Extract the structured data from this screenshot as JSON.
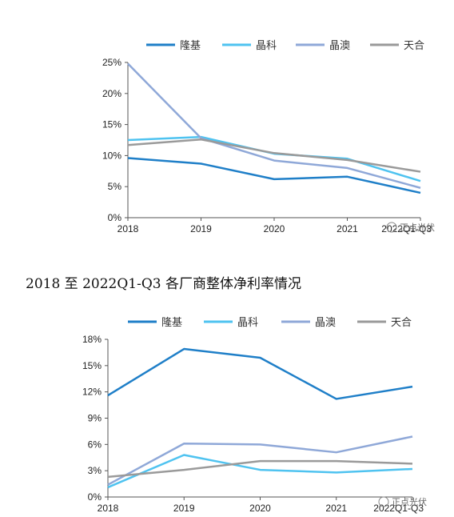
{
  "caption": "2018 至 2022Q1-Q3 各厂商整体净利率情况",
  "watermark": "正点光伏",
  "chart_data": [
    {
      "type": "line",
      "x": [
        "2018",
        "2019",
        "2020",
        "2021",
        "2022Q1-Q3"
      ],
      "ylim": [
        0,
        25
      ],
      "yticks": [
        "0%",
        "5%",
        "10%",
        "15%",
        "20%",
        "25%"
      ],
      "legend_position": "top",
      "series": [
        {
          "name": "隆基",
          "color": "#1f7fc8",
          "values": [
            9.6,
            8.7,
            6.2,
            6.6,
            4.0
          ]
        },
        {
          "name": "晶科",
          "color": "#4fc3f0",
          "values": [
            12.5,
            13.0,
            10.3,
            9.5,
            5.9
          ]
        },
        {
          "name": "晶澳",
          "color": "#8fa8d8",
          "values": [
            24.8,
            12.8,
            9.2,
            8.0,
            4.8
          ]
        },
        {
          "name": "天合",
          "color": "#9a9a9a",
          "values": [
            11.7,
            12.6,
            10.4,
            9.3,
            7.4
          ]
        }
      ]
    },
    {
      "type": "line",
      "x": [
        "2018",
        "2019",
        "2020",
        "2021",
        "2022Q1-Q3"
      ],
      "ylim": [
        0,
        18
      ],
      "yticks": [
        "0%",
        "3%",
        "6%",
        "9%",
        "12%",
        "15%",
        "18%"
      ],
      "legend_position": "top",
      "series": [
        {
          "name": "隆基",
          "color": "#1f7fc8",
          "values": [
            11.6,
            16.9,
            15.9,
            11.2,
            12.6
          ]
        },
        {
          "name": "晶科",
          "color": "#4fc3f0",
          "values": [
            1.1,
            4.8,
            3.1,
            2.8,
            3.2
          ]
        },
        {
          "name": "晶澳",
          "color": "#8fa8d8",
          "values": [
            1.4,
            6.1,
            6.0,
            5.1,
            6.9
          ]
        },
        {
          "name": "天合",
          "color": "#9a9a9a",
          "values": [
            2.3,
            3.1,
            4.1,
            4.1,
            3.8
          ]
        }
      ]
    }
  ]
}
